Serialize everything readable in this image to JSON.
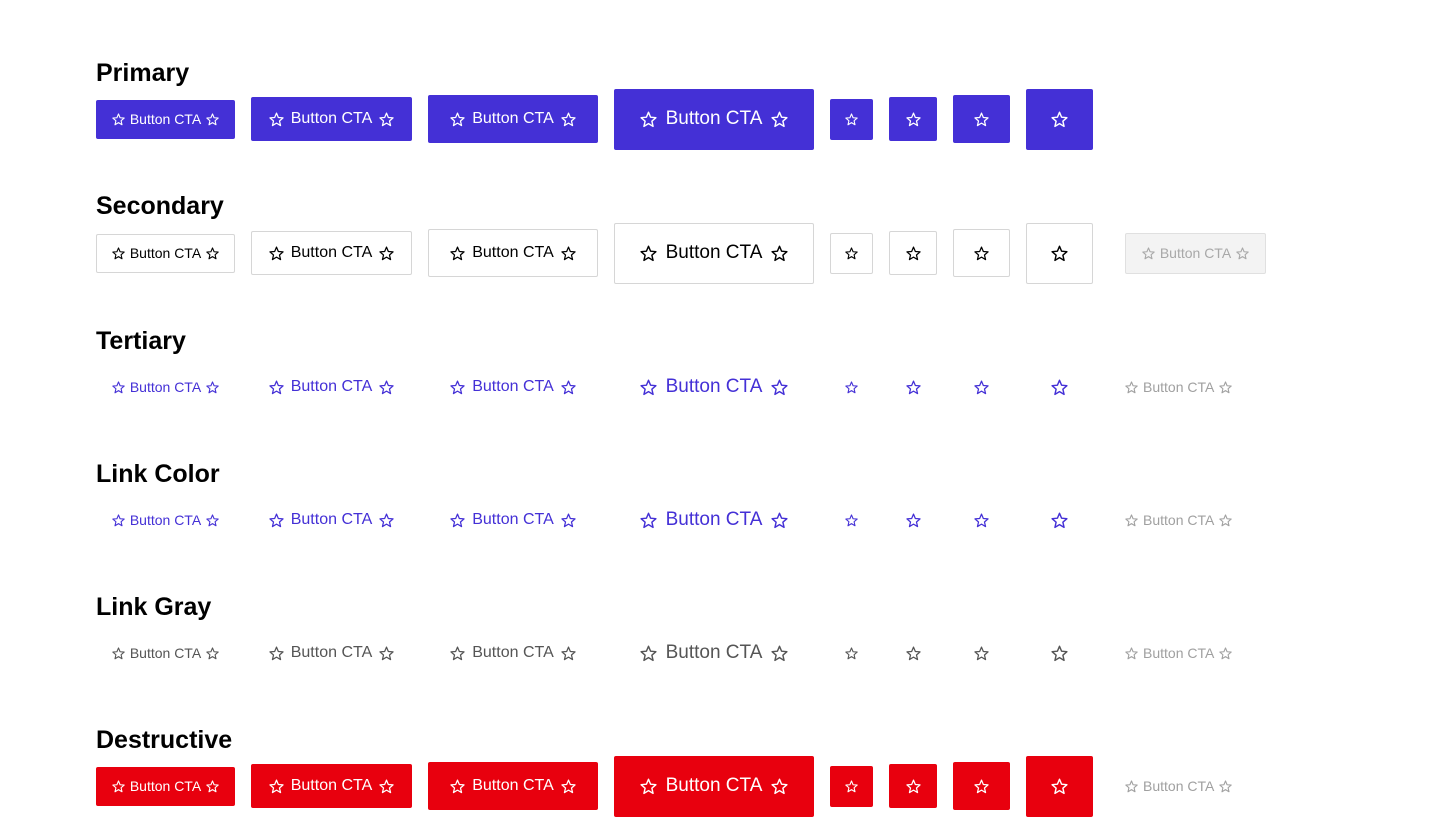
{
  "sections": [
    {
      "title": "Primary",
      "labels": [
        "Button CTA",
        "Button CTA",
        "Button CTA",
        "Button CTA"
      ]
    },
    {
      "title": "Secondary",
      "labels": [
        "Button CTA",
        "Button CTA",
        "Button CTA",
        "Button CTA",
        "Button CTA"
      ]
    },
    {
      "title": "Tertiary",
      "labels": [
        "Button CTA",
        "Button CTA",
        "Button CTA",
        "Button CTA",
        "Button CTA"
      ]
    },
    {
      "title": "Link Color",
      "labels": [
        "Button CTA",
        "Button CTA",
        "Button CTA",
        "Button CTA",
        "Button CTA"
      ]
    },
    {
      "title": "Link Gray",
      "labels": [
        "Button CTA",
        "Button CTA",
        "Button CTA",
        "Button CTA",
        "Button CTA"
      ]
    },
    {
      "title": "Destructive",
      "labels": [
        "Button CTA",
        "Button CTA",
        "Button CTA",
        "Button CTA",
        "Button CTA"
      ]
    }
  ]
}
